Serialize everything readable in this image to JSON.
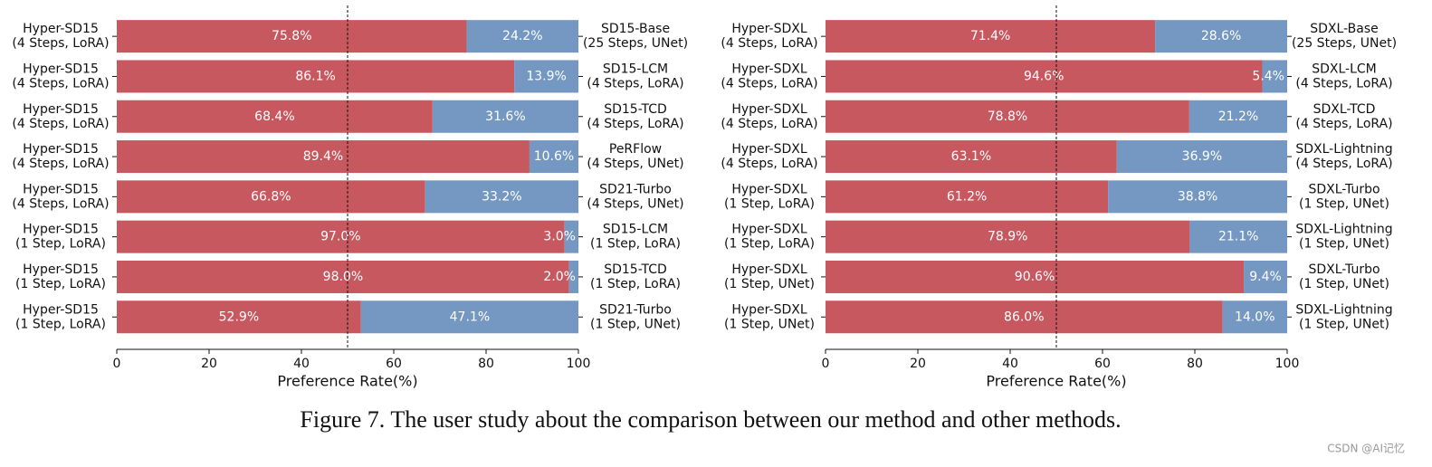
{
  "chart_data": [
    {
      "type": "barh-stacked",
      "categories": [
        [
          "Hyper-SD15",
          "(4 Steps, LoRA)"
        ],
        [
          "Hyper-SD15",
          "(4 Steps, LoRA)"
        ],
        [
          "Hyper-SD15",
          "(4 Steps, LoRA)"
        ],
        [
          "Hyper-SD15",
          "(4 Steps, LoRA)"
        ],
        [
          "Hyper-SD15",
          "(4 Steps, LoRA)"
        ],
        [
          "Hyper-SD15",
          "(1 Step, LoRA)"
        ],
        [
          "Hyper-SD15",
          "(1 Step, LoRA)"
        ],
        [
          "Hyper-SD15",
          "(1 Step, LoRA)"
        ]
      ],
      "opponents": [
        [
          "SD15-Base",
          "(25 Steps, UNet)"
        ],
        [
          "SD15-LCM",
          "(4 Steps, LoRA)"
        ],
        [
          "SD15-TCD",
          "(4 Steps, LoRA)"
        ],
        [
          "PeRFlow",
          "(4 Steps, UNet)"
        ],
        [
          "SD21-Turbo",
          "(4 Steps, UNet)"
        ],
        [
          "SD15-LCM",
          "(1 Step, LoRA)"
        ],
        [
          "SD15-TCD",
          "(1 Step, LoRA)"
        ],
        [
          "SD21-Turbo",
          "(1 Step, UNet)"
        ]
      ],
      "series": [
        {
          "color": "#c8585f",
          "values": [
            75.8,
            86.1,
            68.4,
            89.4,
            66.8,
            97.0,
            98.0,
            52.9
          ],
          "value_labels": [
            "75.8%",
            "86.1%",
            "68.4%",
            "89.4%",
            "66.8%",
            "97.0%",
            "98.0%",
            "52.9%"
          ]
        },
        {
          "color": "#7498c2",
          "values": [
            24.2,
            13.9,
            31.6,
            10.6,
            33.2,
            3.0,
            2.0,
            47.1
          ],
          "value_labels": [
            "24.2%",
            "13.9%",
            "31.6%",
            "10.6%",
            "33.2%",
            "3.0%",
            "2.0%",
            "47.1%"
          ]
        }
      ],
      "xlabel": "Preference Rate(%)",
      "xlim": [
        0,
        100
      ],
      "xticks": [
        0,
        20,
        40,
        60,
        80,
        100
      ],
      "reference_line": 50
    },
    {
      "type": "barh-stacked",
      "categories": [
        [
          "Hyper-SDXL",
          "(4 Steps, LoRA)"
        ],
        [
          "Hyper-SDXL",
          "(4 Steps, LoRA)"
        ],
        [
          "Hyper-SDXL",
          "(4 Steps, LoRA)"
        ],
        [
          "Hyper-SDXL",
          "(4 Steps, LoRA)"
        ],
        [
          "Hyper-SDXL",
          "(1 Step, LoRA)"
        ],
        [
          "Hyper-SDXL",
          "(1 Step, LoRA)"
        ],
        [
          "Hyper-SDXL",
          "(1 Step, UNet)"
        ],
        [
          "Hyper-SDXL",
          "(1 Step, UNet)"
        ]
      ],
      "opponents": [
        [
          "SDXL-Base",
          "(25 Steps, UNet)"
        ],
        [
          "SDXL-LCM",
          "(4 Steps, LoRA)"
        ],
        [
          "SDXL-TCD",
          "(4 Steps, LoRA)"
        ],
        [
          "SDXL-Lightning",
          "(4 Steps, LoRA)"
        ],
        [
          "SDXL-Turbo",
          "(1 Step, UNet)"
        ],
        [
          "SDXL-Lightning",
          "(1 Step, UNet)"
        ],
        [
          "SDXL-Turbo",
          "(1 Step, UNet)"
        ],
        [
          "SDXL-Lightning",
          "(1 Step, UNet)"
        ]
      ],
      "series": [
        {
          "color": "#c8585f",
          "values": [
            71.4,
            94.6,
            78.8,
            63.1,
            61.2,
            78.9,
            90.6,
            86.0
          ],
          "value_labels": [
            "71.4%",
            "94.6%",
            "78.8%",
            "63.1%",
            "61.2%",
            "78.9%",
            "90.6%",
            "86.0%"
          ]
        },
        {
          "color": "#7498c2",
          "values": [
            28.6,
            5.4,
            21.2,
            36.9,
            38.8,
            21.1,
            9.4,
            14.0
          ],
          "value_labels": [
            "28.6%",
            "5.4%",
            "21.2%",
            "36.9%",
            "38.8%",
            "21.1%",
            "9.4%",
            "14.0%"
          ]
        }
      ],
      "xlabel": "Preference Rate(%)",
      "xlim": [
        0,
        100
      ],
      "xticks": [
        0,
        20,
        40,
        60,
        80,
        100
      ],
      "reference_line": 50
    }
  ],
  "caption": "Figure 7. The user study about the comparison between our method and other methods.",
  "watermark": "CSDN @AI记忆"
}
